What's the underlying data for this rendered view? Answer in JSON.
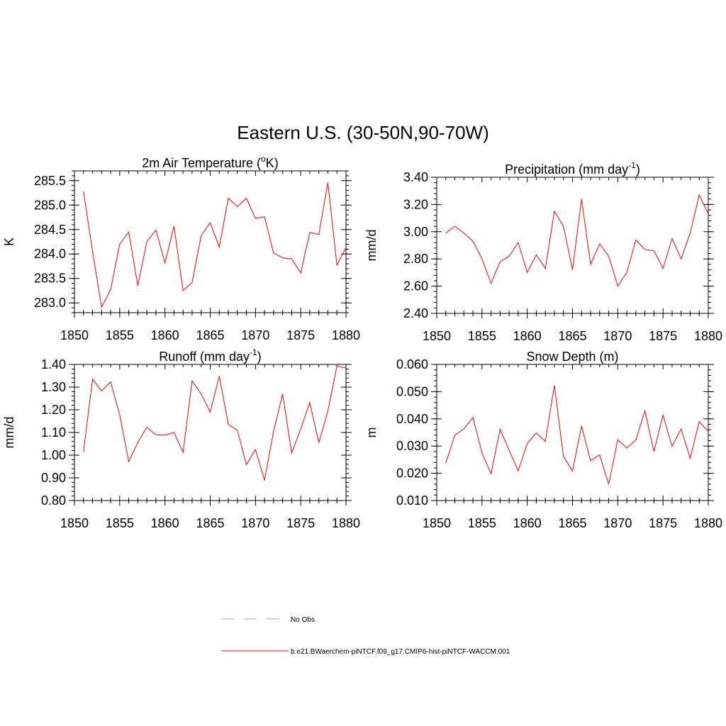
{
  "figure": {
    "title": "Eastern U.S. (30-50N,90-70W)"
  },
  "colors": {
    "model_line": "#ff0000",
    "obs_line": "#9999ee",
    "axis": "#000000"
  },
  "legend": {
    "placement": "bottom-center",
    "entries": [
      {
        "label": "No Obs",
        "style": "dashed",
        "color": "#9999ee"
      },
      {
        "label": "b.e21.BWaerchem-piNTCF.f09_g17.CMIP6-hist-piNTCF-WACCM.001",
        "style": "solid",
        "color": "#ff0000"
      }
    ]
  },
  "chart_data": [
    {
      "type": "line",
      "title_main": "2m Air Temperature (",
      "title_sup": "o",
      "title_after": "K)",
      "ylabel": "K",
      "xlabel": "",
      "xlim": [
        1850,
        1880
      ],
      "ylim": [
        282.8,
        285.7
      ],
      "xticks": [
        "1850",
        "1855",
        "1860",
        "1865",
        "1870",
        "1875",
        "1880"
      ],
      "yticks": [
        "283.0",
        "283.5",
        "284.0",
        "284.5",
        "285.0",
        "285.5"
      ],
      "ytick_values": [
        283.0,
        283.5,
        284.0,
        284.5,
        285.0,
        285.5
      ],
      "yminor_step": 0.1,
      "grid": false,
      "series": [
        {
          "color": "#ff0000",
          "x": [
            1851,
            1852,
            1853,
            1854,
            1855,
            1856,
            1857,
            1858,
            1859,
            1860,
            1861,
            1862,
            1863,
            1864,
            1865,
            1866,
            1867,
            1868,
            1869,
            1870,
            1871,
            1872,
            1873,
            1874,
            1875,
            1876,
            1877,
            1878,
            1879,
            1880
          ],
          "y": [
            285.28,
            284.05,
            282.91,
            283.27,
            284.2,
            284.45,
            283.35,
            284.25,
            284.49,
            283.82,
            284.57,
            283.25,
            283.42,
            284.37,
            284.64,
            284.14,
            285.14,
            284.97,
            285.14,
            284.73,
            284.76,
            284.02,
            283.92,
            283.9,
            283.61,
            284.44,
            284.4,
            285.46,
            283.77,
            284.13
          ]
        }
      ]
    },
    {
      "type": "line",
      "title_main": "Precipitation (mm day",
      "title_sup": "-1",
      "title_after": ")",
      "ylabel": "mm/d",
      "xlabel": "",
      "xlim": [
        1850,
        1880
      ],
      "ylim": [
        2.4,
        3.4
      ],
      "xticks": [
        "1850",
        "1855",
        "1860",
        "1865",
        "1870",
        "1875",
        "1880"
      ],
      "yticks": [
        "2.40",
        "2.60",
        "2.80",
        "3.00",
        "3.20",
        "3.40"
      ],
      "ytick_values": [
        2.4,
        2.6,
        2.8,
        3.0,
        3.2,
        3.4
      ],
      "yminor_step": 0.04,
      "grid": false,
      "series": [
        {
          "color": "#ff0000",
          "x": [
            1851,
            1852,
            1853,
            1854,
            1855,
            1856,
            1857,
            1858,
            1859,
            1860,
            1861,
            1862,
            1863,
            1864,
            1865,
            1866,
            1867,
            1868,
            1869,
            1870,
            1871,
            1872,
            1873,
            1874,
            1875,
            1876,
            1877,
            1878,
            1879,
            1880
          ],
          "y": [
            2.99,
            3.04,
            2.99,
            2.93,
            2.8,
            2.62,
            2.78,
            2.82,
            2.92,
            2.7,
            2.83,
            2.73,
            3.15,
            3.04,
            2.72,
            3.24,
            2.76,
            2.91,
            2.82,
            2.6,
            2.7,
            2.94,
            2.87,
            2.86,
            2.73,
            2.95,
            2.8,
            2.99,
            3.27,
            3.13
          ]
        }
      ]
    },
    {
      "type": "line",
      "title_main": "Runoff (mm day",
      "title_sup": "-1",
      "title_after": ")",
      "ylabel": "mm/d",
      "xlabel": "",
      "xlim": [
        1850,
        1880
      ],
      "ylim": [
        0.8,
        1.4
      ],
      "xticks": [
        "1850",
        "1855",
        "1860",
        "1865",
        "1870",
        "1875",
        "1880"
      ],
      "yticks": [
        "0.80",
        "0.90",
        "1.00",
        "1.10",
        "1.20",
        "1.30",
        "1.40"
      ],
      "ytick_values": [
        0.8,
        0.9,
        1.0,
        1.1,
        1.2,
        1.3,
        1.4
      ],
      "yminor_step": 0.02,
      "grid": false,
      "series": [
        {
          "color": "#ff0000",
          "x": [
            1851,
            1852,
            1853,
            1854,
            1855,
            1856,
            1857,
            1858,
            1859,
            1860,
            1861,
            1862,
            1863,
            1864,
            1865,
            1866,
            1867,
            1868,
            1869,
            1870,
            1871,
            1872,
            1873,
            1874,
            1875,
            1876,
            1877,
            1878,
            1879,
            1880
          ],
          "y": [
            1.015,
            1.335,
            1.283,
            1.323,
            1.178,
            0.972,
            1.056,
            1.123,
            1.09,
            1.088,
            1.1,
            1.012,
            1.328,
            1.27,
            1.19,
            1.348,
            1.136,
            1.11,
            0.958,
            1.025,
            0.89,
            1.105,
            1.27,
            1.01,
            1.115,
            1.232,
            1.055,
            1.195,
            1.392,
            1.385
          ]
        }
      ]
    },
    {
      "type": "line",
      "title_main": "Snow Depth (m)",
      "title_sup": "",
      "title_after": "",
      "ylabel": "m",
      "xlabel": "",
      "xlim": [
        1850,
        1880
      ],
      "ylim": [
        0.01,
        0.06
      ],
      "xticks": [
        "1850",
        "1855",
        "1860",
        "1865",
        "1870",
        "1875",
        "1880"
      ],
      "yticks": [
        "0.010",
        "0.020",
        "0.030",
        "0.040",
        "0.050",
        "0.060"
      ],
      "ytick_values": [
        0.01,
        0.02,
        0.03,
        0.04,
        0.05,
        0.06
      ],
      "yminor_step": 0.002,
      "grid": false,
      "series": [
        {
          "color": "#ff0000",
          "x": [
            1851,
            1852,
            1853,
            1854,
            1855,
            1856,
            1857,
            1858,
            1859,
            1860,
            1861,
            1862,
            1863,
            1864,
            1865,
            1866,
            1867,
            1868,
            1869,
            1870,
            1871,
            1872,
            1873,
            1874,
            1875,
            1876,
            1877,
            1878,
            1879,
            1880
          ],
          "y": [
            0.0237,
            0.034,
            0.0363,
            0.0405,
            0.0275,
            0.0198,
            0.0362,
            0.0285,
            0.0209,
            0.031,
            0.0348,
            0.0317,
            0.0523,
            0.0262,
            0.0208,
            0.0374,
            0.0246,
            0.0268,
            0.016,
            0.0323,
            0.0293,
            0.0322,
            0.043,
            0.028,
            0.0414,
            0.0299,
            0.0363,
            0.0255,
            0.039,
            0.0354
          ]
        }
      ]
    }
  ]
}
